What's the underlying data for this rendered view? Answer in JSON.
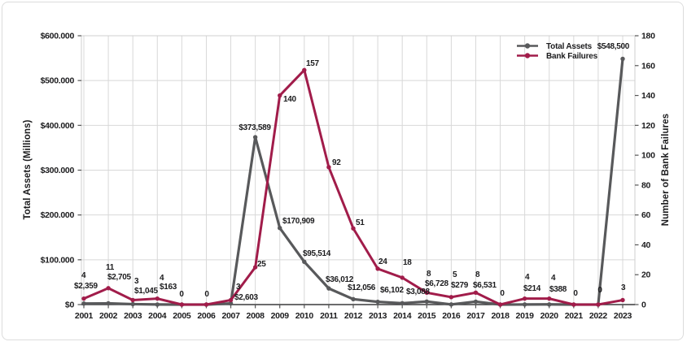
{
  "chart_data": {
    "type": "line",
    "title": "",
    "categories": [
      "2001",
      "2002",
      "2003",
      "2004",
      "2005",
      "2006",
      "2007",
      "2008",
      "2009",
      "2010",
      "2011",
      "2012",
      "2013",
      "2014",
      "2015",
      "2016",
      "2017",
      "2018",
      "2019",
      "2020",
      "2021",
      "2022",
      "2023"
    ],
    "series": [
      {
        "name": "Total Assets",
        "axis": "left",
        "color": "#58595b",
        "values": [
          2359,
          2705,
          1045,
          163,
          0,
          0,
          2603,
          373589,
          170909,
          95514,
          36012,
          12056,
          6102,
          3088,
          6728,
          279,
          6531,
          0,
          214,
          388,
          0,
          0,
          548500
        ],
        "point_labels": [
          "$2,359",
          "$2,705",
          "$1,045",
          "$163",
          "",
          "",
          "$2,603",
          "$373,589",
          "$170,909",
          "$95,514",
          "$36,012",
          "$12,056",
          "$6,102",
          "$3,088",
          "$6,728",
          "$279",
          "$6,531",
          "",
          "$214",
          "$388",
          "",
          "",
          "$548,500"
        ]
      },
      {
        "name": "Bank Failures",
        "axis": "right",
        "color": "#a11c4a",
        "values": [
          4,
          11,
          3,
          4,
          0,
          0,
          3,
          25,
          140,
          157,
          92,
          51,
          24,
          18,
          8,
          5,
          8,
          0,
          4,
          4,
          0,
          0,
          3
        ],
        "point_labels": [
          "4",
          "11",
          "3",
          "4",
          "0",
          "0",
          "3",
          "25",
          "140",
          "157",
          "92",
          "51",
          "24",
          "18",
          "8",
          "5",
          "8",
          "0",
          "4",
          "4",
          "0",
          "0",
          "3"
        ]
      }
    ],
    "left_axis": {
      "title": "Total Assets (Millions)",
      "tick_labels": [
        "$0",
        "$100.000",
        "$200.000",
        "$300.000",
        "$400.000",
        "$500.000",
        "$600.000"
      ],
      "tick_values": [
        0,
        100000,
        200000,
        300000,
        400000,
        500000,
        600000
      ],
      "range": [
        0,
        600000
      ]
    },
    "right_axis": {
      "title": "Number of Bank Failures",
      "tick_labels": [
        "0",
        "20",
        "40",
        "60",
        "80",
        "100",
        "120",
        "140",
        "160",
        "180"
      ],
      "tick_values": [
        0,
        20,
        40,
        60,
        80,
        100,
        120,
        140,
        160,
        180
      ],
      "range": [
        0,
        180
      ]
    },
    "legend": {
      "position": "top-right-inside",
      "entries": [
        "Total Assets",
        "Bank Failures"
      ]
    },
    "grid": true,
    "colors": {
      "gridline": "#d8d8d8",
      "plot_border": "#cfcfcf",
      "axis_line": "#3a3a3c",
      "text": "#1c1c1e"
    }
  }
}
